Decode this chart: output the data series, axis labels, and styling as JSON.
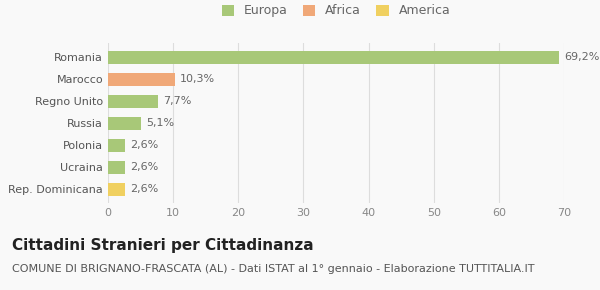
{
  "categories": [
    "Rep. Dominicana",
    "Ucraina",
    "Polonia",
    "Russia",
    "Regno Unito",
    "Marocco",
    "Romania"
  ],
  "values": [
    2.6,
    2.6,
    2.6,
    5.1,
    7.7,
    10.3,
    69.2
  ],
  "labels": [
    "2,6%",
    "2,6%",
    "2,6%",
    "5,1%",
    "7,7%",
    "10,3%",
    "69,2%"
  ],
  "colors": [
    "#f0d060",
    "#a8c878",
    "#a8c878",
    "#a8c878",
    "#a8c878",
    "#f0a878",
    "#a8c878"
  ],
  "legend_labels": [
    "Europa",
    "Africa",
    "America"
  ],
  "legend_colors": [
    "#a8c878",
    "#f0a878",
    "#f0d060"
  ],
  "xlim": [
    0,
    70
  ],
  "xticks": [
    0,
    10,
    20,
    30,
    40,
    50,
    60,
    70
  ],
  "title": "Cittadini Stranieri per Cittadinanza",
  "subtitle": "COMUNE DI BRIGNANO-FRASCATA (AL) - Dati ISTAT al 1° gennaio - Elaborazione TUTTITALIA.IT",
  "bg_color": "#f9f9f9",
  "grid_color": "#dddddd",
  "bar_height": 0.6,
  "title_fontsize": 11,
  "subtitle_fontsize": 8,
  "label_fontsize": 8,
  "tick_fontsize": 8,
  "legend_fontsize": 9
}
